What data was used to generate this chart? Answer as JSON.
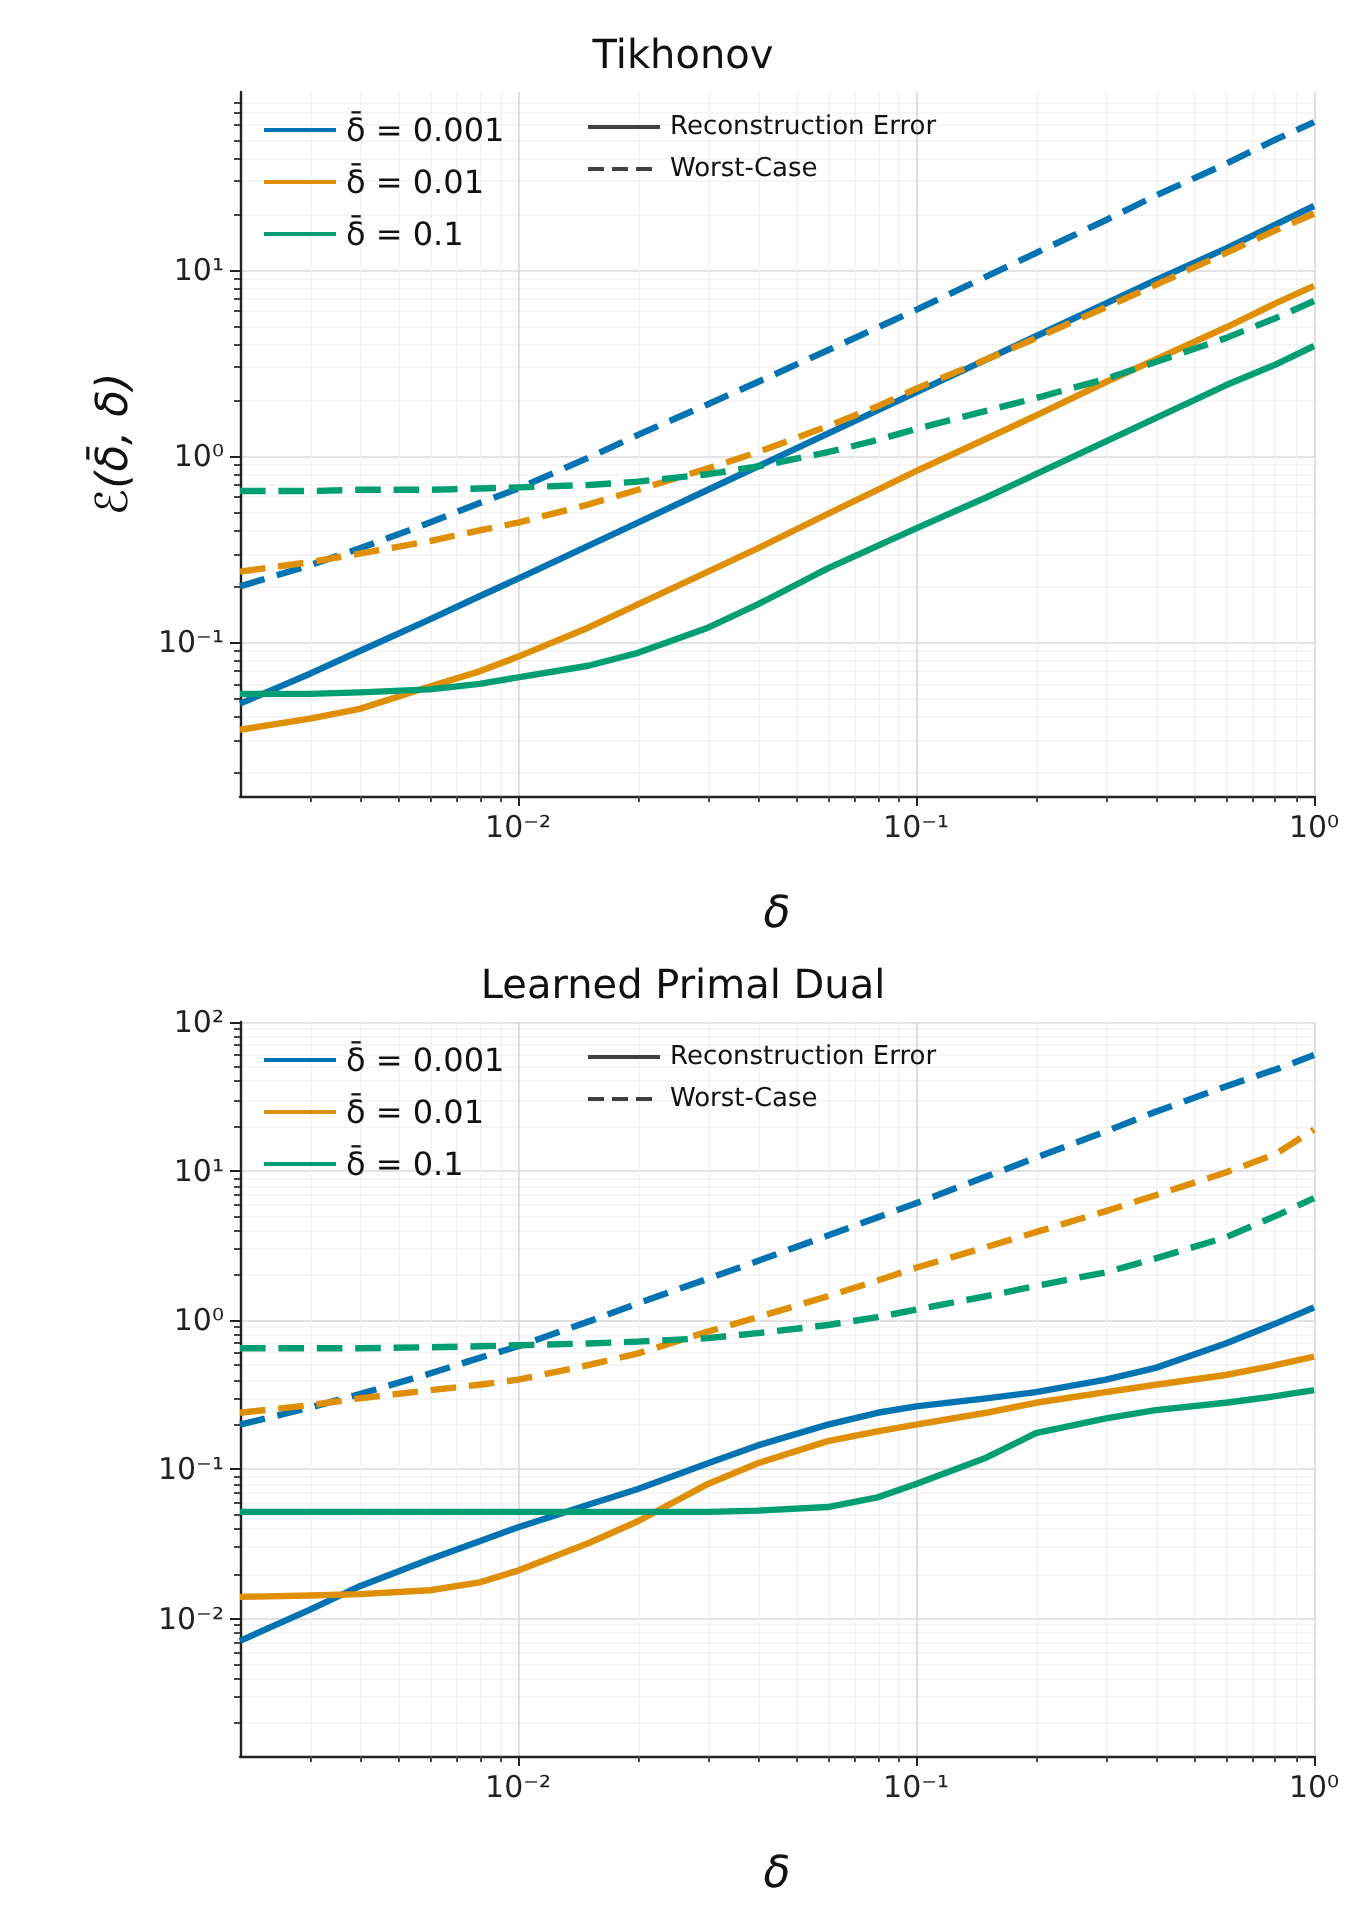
{
  "chart_data": [
    {
      "type": "line",
      "title": "Tikhonov",
      "xlabel": "δ",
      "ylabel": "ℰ(δ̄, δ)",
      "log": "xy",
      "grid": true,
      "legend": "top left",
      "xlim": [
        0.002,
        1
      ],
      "xticks": [
        {
          "value": 0.01,
          "label": "10⁻²"
        },
        {
          "value": 0.1,
          "label": "10⁻¹"
        },
        {
          "value": 1,
          "label": "10⁰"
        }
      ],
      "ylim": [
        0.015,
        90
      ],
      "yticks": [
        {
          "value": 0.1,
          "label": "10⁻¹"
        },
        {
          "value": 1,
          "label": "10⁰"
        },
        {
          "value": 10,
          "label": "10¹"
        }
      ],
      "x": [
        0.002,
        0.003,
        0.004,
        0.006,
        0.008,
        0.01,
        0.015,
        0.02,
        0.03,
        0.04,
        0.06,
        0.08,
        0.1,
        0.15,
        0.2,
        0.3,
        0.4,
        0.6,
        0.8,
        1
      ],
      "series": [
        {
          "name": "δ̄ = 0.001",
          "color": "#0173b2",
          "line_style": "solid",
          "values": [
            0.047,
            0.068,
            0.09,
            0.133,
            0.177,
            0.22,
            0.33,
            0.44,
            0.66,
            0.88,
            1.32,
            1.76,
            2.2,
            3.3,
            4.4,
            6.6,
            8.8,
            13,
            17.5,
            22
          ]
        },
        {
          "name": "δ̄ = 0.01",
          "color": "#de8f05",
          "line_style": "solid",
          "values": [
            0.034,
            0.039,
            0.044,
            0.058,
            0.07,
            0.084,
            0.12,
            0.16,
            0.24,
            0.32,
            0.49,
            0.66,
            0.83,
            1.24,
            1.65,
            2.5,
            3.3,
            4.9,
            6.6,
            8.2
          ]
        },
        {
          "name": "δ̄ = 0.1",
          "color": "#029e73",
          "line_style": "solid",
          "values": [
            0.053,
            0.053,
            0.054,
            0.056,
            0.06,
            0.065,
            0.075,
            0.088,
            0.12,
            0.16,
            0.25,
            0.33,
            0.41,
            0.6,
            0.8,
            1.2,
            1.6,
            2.4,
            3.1,
            3.9
          ]
        },
        {
          "color": "#0173b2",
          "line_style": "dashed",
          "values": [
            0.2,
            0.26,
            0.32,
            0.44,
            0.56,
            0.67,
            0.98,
            1.3,
            1.9,
            2.5,
            3.7,
            4.9,
            6.1,
            9.2,
            12.3,
            18.5,
            25,
            37,
            50,
            62
          ]
        },
        {
          "color": "#de8f05",
          "line_style": "dashed",
          "values": [
            0.24,
            0.27,
            0.3,
            0.35,
            0.4,
            0.44,
            0.55,
            0.66,
            0.86,
            1.05,
            1.45,
            1.85,
            2.3,
            3.3,
            4.3,
            6.3,
            8.3,
            12.3,
            16.3,
            20
          ]
        },
        {
          "color": "#029e73",
          "line_style": "dashed",
          "values": [
            0.65,
            0.65,
            0.66,
            0.66,
            0.67,
            0.68,
            0.7,
            0.73,
            0.8,
            0.88,
            1.05,
            1.22,
            1.4,
            1.75,
            2.05,
            2.6,
            3.2,
            4.3,
            5.5,
            6.8
          ]
        },
        {
          "name": "Reconstruction Error",
          "color": "#404040",
          "line_style": "solid",
          "values": [
            null,
            null,
            null,
            null,
            null,
            null,
            null,
            null,
            null,
            null,
            null,
            null,
            null,
            null,
            null,
            null,
            null,
            null,
            null,
            null
          ]
        },
        {
          "name": "Worst-Case",
          "color": "#404040",
          "line_style": "dashed",
          "values": [
            null,
            null,
            null,
            null,
            null,
            null,
            null,
            null,
            null,
            null,
            null,
            null,
            null,
            null,
            null,
            null,
            null,
            null,
            null,
            null
          ]
        }
      ]
    },
    {
      "type": "line",
      "title": "Learned Primal Dual",
      "xlabel": "δ",
      "log": "xy",
      "grid": true,
      "legend": "top left",
      "xlim": [
        0.002,
        1
      ],
      "xticks": [
        {
          "value": 0.01,
          "label": "10⁻²"
        },
        {
          "value": 0.1,
          "label": "10⁻¹"
        },
        {
          "value": 1,
          "label": "10⁰"
        }
      ],
      "ylim": [
        0.0012,
        100
      ],
      "yticks": [
        {
          "value": 0.01,
          "label": "10⁻²"
        },
        {
          "value": 0.1,
          "label": "10⁻¹"
        },
        {
          "value": 1,
          "label": "10⁰"
        },
        {
          "value": 10,
          "label": "10¹"
        },
        {
          "value": 100,
          "label": "10²"
        }
      ],
      "x": [
        0.002,
        0.003,
        0.004,
        0.006,
        0.008,
        0.01,
        0.015,
        0.02,
        0.03,
        0.04,
        0.06,
        0.08,
        0.1,
        0.15,
        0.2,
        0.3,
        0.4,
        0.6,
        0.8,
        1
      ],
      "series": [
        {
          "name": "δ̄ = 0.001",
          "color": "#0173b2",
          "line_style": "solid",
          "values": [
            0.0071,
            0.0115,
            0.0165,
            0.025,
            0.033,
            0.041,
            0.058,
            0.074,
            0.11,
            0.145,
            0.2,
            0.24,
            0.265,
            0.3,
            0.33,
            0.4,
            0.48,
            0.7,
            0.95,
            1.22
          ]
        },
        {
          "name": "δ̄ = 0.01",
          "color": "#de8f05",
          "line_style": "solid",
          "values": [
            0.014,
            0.0143,
            0.0146,
            0.0155,
            0.0175,
            0.021,
            0.032,
            0.045,
            0.08,
            0.11,
            0.155,
            0.18,
            0.2,
            0.24,
            0.28,
            0.33,
            0.37,
            0.43,
            0.5,
            0.57
          ]
        },
        {
          "name": "δ̄ = 0.1",
          "color": "#029e73",
          "line_style": "solid",
          "values": [
            0.052,
            0.052,
            0.052,
            0.052,
            0.052,
            0.052,
            0.052,
            0.052,
            0.052,
            0.053,
            0.056,
            0.065,
            0.08,
            0.12,
            0.175,
            0.22,
            0.25,
            0.28,
            0.31,
            0.34
          ]
        },
        {
          "color": "#0173b2",
          "line_style": "dashed",
          "values": [
            0.2,
            0.26,
            0.32,
            0.44,
            0.56,
            0.67,
            0.98,
            1.3,
            1.9,
            2.5,
            3.7,
            4.9,
            6.1,
            9.2,
            12.3,
            18.5,
            25,
            37,
            48,
            60
          ]
        },
        {
          "color": "#de8f05",
          "line_style": "dashed",
          "values": [
            0.24,
            0.27,
            0.3,
            0.34,
            0.37,
            0.4,
            0.5,
            0.6,
            0.84,
            1.05,
            1.45,
            1.85,
            2.25,
            3.1,
            3.9,
            5.4,
            6.9,
            9.8,
            13,
            19
          ]
        },
        {
          "color": "#029e73",
          "line_style": "dashed",
          "values": [
            0.65,
            0.65,
            0.65,
            0.66,
            0.67,
            0.68,
            0.7,
            0.72,
            0.76,
            0.82,
            0.93,
            1.05,
            1.18,
            1.45,
            1.7,
            2.1,
            2.6,
            3.6,
            5,
            6.6
          ]
        },
        {
          "name": "Reconstruction Error",
          "color": "#404040",
          "line_style": "solid",
          "values": [
            null,
            null,
            null,
            null,
            null,
            null,
            null,
            null,
            null,
            null,
            null,
            null,
            null,
            null,
            null,
            null,
            null,
            null,
            null,
            null
          ]
        },
        {
          "name": "Worst-Case",
          "color": "#404040",
          "line_style": "dashed",
          "values": [
            null,
            null,
            null,
            null,
            null,
            null,
            null,
            null,
            null,
            null,
            null,
            null,
            null,
            null,
            null,
            null,
            null,
            null,
            null,
            null
          ]
        }
      ]
    }
  ]
}
